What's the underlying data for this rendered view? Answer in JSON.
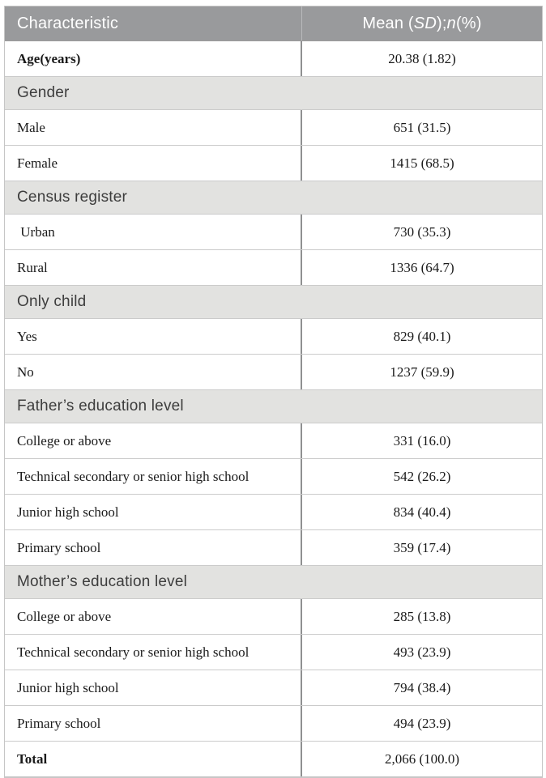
{
  "table": {
    "header": {
      "characteristic_label": "Characteristic",
      "value_label_parts": [
        {
          "text": "Mean (",
          "italic": false
        },
        {
          "text": "SD",
          "italic": true
        },
        {
          "text": "); ",
          "italic": false
        },
        {
          "text": "n",
          "italic": true
        },
        {
          "text": " (%)",
          "italic": false
        }
      ]
    },
    "rows": [
      {
        "type": "data",
        "label": "Age(years)",
        "value": "20.38 (1.82)",
        "label_bold": true
      },
      {
        "type": "section",
        "label": "Gender"
      },
      {
        "type": "data",
        "label": "Male",
        "value": "651 (31.5)",
        "label_bold": false
      },
      {
        "type": "data",
        "label": "Female",
        "value": "1415 (68.5)",
        "label_bold": false
      },
      {
        "type": "section",
        "label": "Census register"
      },
      {
        "type": "data",
        "label": " Urban",
        "value": "730 (35.3)",
        "label_bold": false
      },
      {
        "type": "data",
        "label": "Rural",
        "value": "1336 (64.7)",
        "label_bold": false
      },
      {
        "type": "section",
        "label": "Only child"
      },
      {
        "type": "data",
        "label": "Yes",
        "value": "829 (40.1)",
        "label_bold": false
      },
      {
        "type": "data",
        "label": "No",
        "value": "1237 (59.9)",
        "label_bold": false
      },
      {
        "type": "section",
        "label": "Father’s education level"
      },
      {
        "type": "data",
        "label": "College or above",
        "value": "331 (16.0)",
        "label_bold": false
      },
      {
        "type": "data",
        "label": "Technical secondary or senior high school",
        "value": "542 (26.2)",
        "label_bold": false
      },
      {
        "type": "data",
        "label": "Junior high school",
        "value": "834 (40.4)",
        "label_bold": false
      },
      {
        "type": "data",
        "label": "Primary school",
        "value": "359 (17.4)",
        "label_bold": false
      },
      {
        "type": "section",
        "label": "Mother’s education level"
      },
      {
        "type": "data",
        "label": "College or above",
        "value": "285 (13.8)",
        "label_bold": false
      },
      {
        "type": "data",
        "label": "Technical secondary or senior high school",
        "value": "493 (23.9)",
        "label_bold": false
      },
      {
        "type": "data",
        "label": "Junior high school",
        "value": "794 (38.4)",
        "label_bold": false
      },
      {
        "type": "data",
        "label": "Primary school",
        "value": "494 (23.9)",
        "label_bold": false
      },
      {
        "type": "data",
        "label": "Total",
        "value": "2,066 (100.0)",
        "label_bold": true
      }
    ],
    "colors": {
      "header_bg": "#999a9c",
      "header_text": "#ffffff",
      "section_bg": "#e2e2e0",
      "section_text": "#3d3d3d",
      "row_border": "#cbcbcb",
      "column_divider": "#8f9091"
    }
  }
}
